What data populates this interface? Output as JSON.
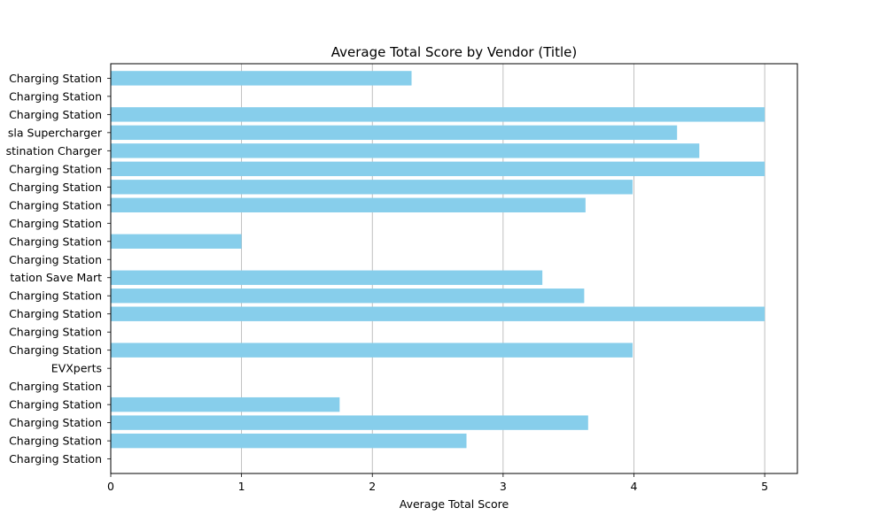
{
  "chart_data": {
    "type": "bar",
    "orientation": "horizontal",
    "title": "Average Total Score by Vendor (Title)",
    "xlabel": "Average Total Score",
    "ylabel": "",
    "xlim": [
      0,
      5.25
    ],
    "xticks": [
      0,
      1,
      2,
      3,
      4,
      5
    ],
    "grid": "x",
    "bar_color": "#87CEEB",
    "categories": [
      "Charging Station",
      "Charging Station",
      "Charging Station",
      "sla Supercharger",
      "stination Charger",
      "Charging Station",
      "Charging Station",
      "Charging Station",
      "Charging Station",
      "Charging Station",
      "Charging Station",
      "tation Save Mart",
      "Charging Station",
      "Charging Station",
      "Charging Station",
      "Charging Station",
      "EVXperts",
      "Charging Station",
      "Charging Station",
      "Charging Station",
      "Charging Station",
      "Charging Station"
    ],
    "values": [
      2.3,
      0,
      5.0,
      4.33,
      4.5,
      5.0,
      3.99,
      3.63,
      0,
      1.0,
      0,
      3.3,
      3.62,
      5.0,
      0,
      3.99,
      0,
      0,
      1.75,
      3.65,
      2.72,
      0
    ]
  }
}
